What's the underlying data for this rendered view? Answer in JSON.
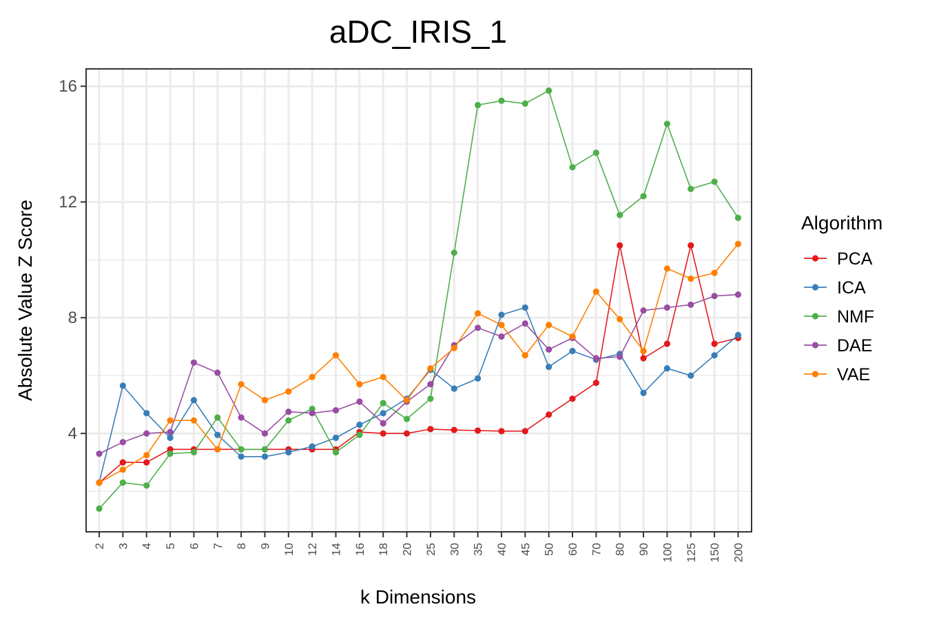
{
  "chart_data": {
    "type": "line",
    "title": "aDC_IRIS_1",
    "xlabel": "k Dimensions",
    "ylabel": "Absolute Value Z Score",
    "categories": [
      "2",
      "3",
      "4",
      "5",
      "6",
      "7",
      "8",
      "9",
      "10",
      "12",
      "14",
      "16",
      "18",
      "20",
      "25",
      "30",
      "35",
      "40",
      "45",
      "50",
      "60",
      "70",
      "80",
      "90",
      "100",
      "125",
      "150",
      "200"
    ],
    "yticks": [
      4,
      8,
      12,
      16
    ],
    "ylim": [
      0.6,
      16.6
    ],
    "grid": true,
    "legend": {
      "title": "Algorithm",
      "placement": "right"
    },
    "series": [
      {
        "name": "PCA",
        "color": "#e41a1c",
        "values": [
          2.3,
          3.0,
          3.0,
          3.45,
          3.45,
          3.45,
          3.45,
          3.45,
          3.45,
          3.45,
          3.45,
          4.05,
          4.0,
          4.0,
          4.15,
          4.12,
          4.1,
          4.08,
          4.08,
          4.65,
          5.2,
          5.75,
          10.5,
          6.6,
          7.1,
          10.5,
          7.1,
          7.3
        ]
      },
      {
        "name": "ICA",
        "color": "#377eb8",
        "values": [
          2.3,
          5.65,
          4.7,
          3.85,
          5.15,
          3.95,
          3.2,
          3.2,
          3.35,
          3.55,
          3.85,
          4.3,
          4.7,
          5.2,
          6.2,
          5.55,
          5.9,
          8.1,
          8.35,
          6.3,
          6.85,
          6.55,
          6.75,
          5.4,
          6.25,
          6.0,
          6.7,
          7.4
        ]
      },
      {
        "name": "NMF",
        "color": "#4daf4a",
        "values": [
          1.4,
          2.3,
          2.2,
          3.3,
          3.35,
          4.55,
          3.45,
          3.45,
          4.45,
          4.85,
          3.35,
          3.95,
          5.05,
          4.5,
          5.2,
          10.25,
          15.35,
          15.5,
          15.4,
          15.85,
          13.2,
          13.7,
          11.55,
          12.2,
          14.7,
          12.45,
          12.7,
          11.45
        ]
      },
      {
        "name": "DAE",
        "color": "#984ea3",
        "values": [
          3.3,
          3.7,
          4.0,
          4.05,
          6.45,
          6.1,
          4.55,
          4.0,
          4.75,
          4.7,
          4.8,
          5.1,
          4.35,
          5.1,
          5.7,
          7.05,
          7.65,
          7.35,
          7.8,
          6.9,
          7.3,
          6.6,
          6.65,
          8.25,
          8.35,
          8.45,
          8.75,
          8.8
        ]
      },
      {
        "name": "VAE",
        "color": "#ff7f00",
        "values": [
          2.3,
          2.75,
          3.25,
          4.45,
          4.45,
          3.45,
          5.7,
          5.15,
          5.45,
          5.95,
          6.7,
          5.7,
          5.95,
          5.15,
          6.25,
          6.95,
          8.15,
          7.75,
          6.7,
          7.75,
          7.35,
          8.9,
          7.95,
          6.85,
          9.7,
          9.35,
          9.55,
          10.55
        ]
      }
    ]
  }
}
